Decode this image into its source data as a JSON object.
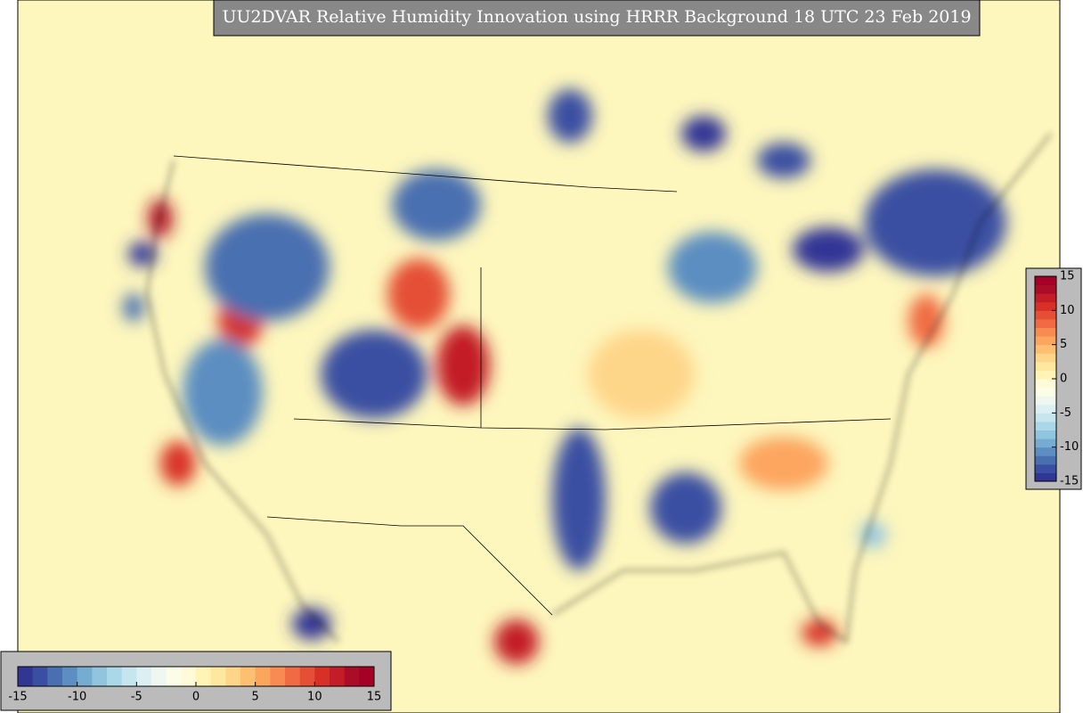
{
  "title": "UU2DVAR Relative Humidity Innovation using HRRR Background 18 UTC 23 Feb 2019",
  "colorbar": {
    "clim": [
      -15,
      15
    ],
    "colors": [
      "#313695",
      "#3b4fa2",
      "#4a6fb0",
      "#5c8ec1",
      "#75acd1",
      "#91c4de",
      "#abd8e8",
      "#c6e6ef",
      "#dcf0f3",
      "#eef8f0",
      "#fbfde6",
      "#fffbd8",
      "#fff3b5",
      "#fee8a0",
      "#fed68a",
      "#fdbf71",
      "#fca55f",
      "#f88b51",
      "#f06b43",
      "#e44f35",
      "#d73027",
      "#c31d28",
      "#ab0d26",
      "#a50026"
    ],
    "ticks": [
      -15,
      -10,
      -5,
      0,
      5,
      10,
      15
    ]
  }
}
